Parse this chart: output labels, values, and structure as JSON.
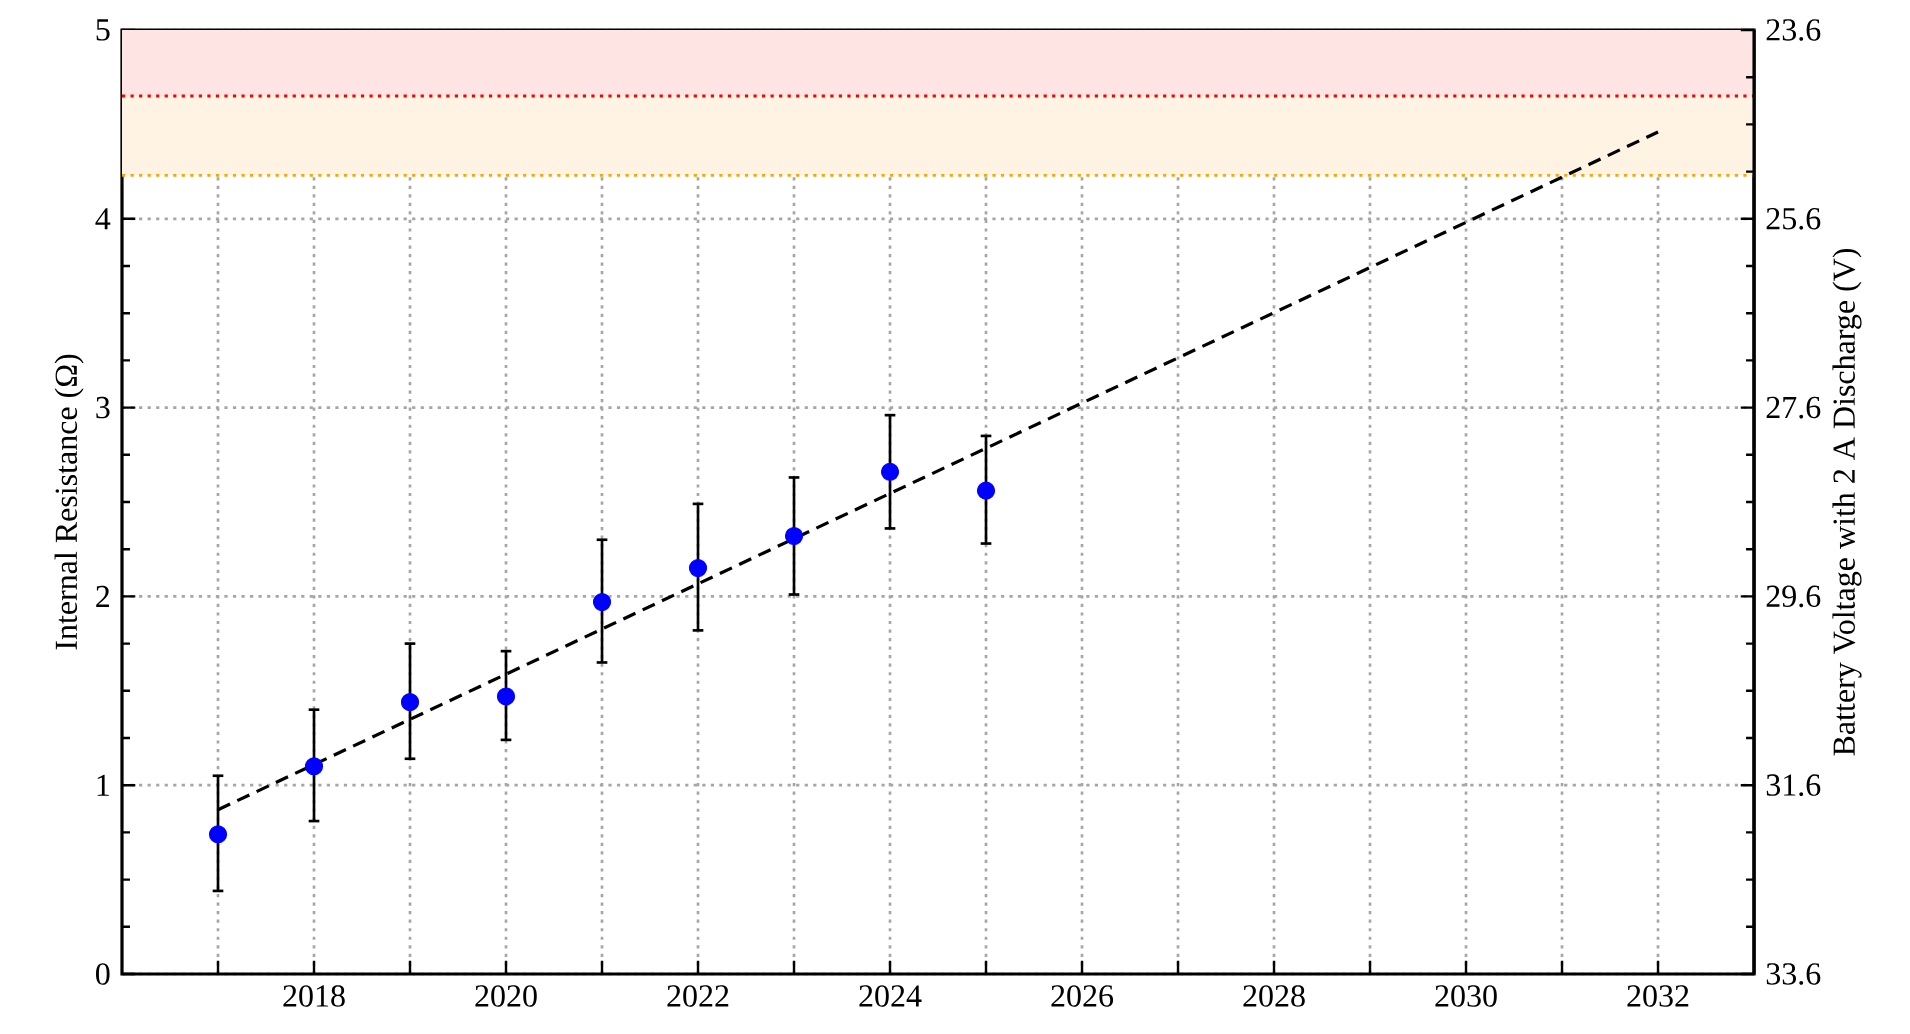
{
  "chart_data": {
    "type": "scatter",
    "ylabel": "Internal Resistance (Ω)",
    "y2label": "Battery Voltage with 2 A Discharge (V)",
    "xlim": [
      2016,
      2033
    ],
    "xticks": [
      {
        "value": 2017,
        "label": null
      },
      2018,
      {
        "value": 2019,
        "label": null
      },
      2020,
      {
        "value": 2021,
        "label": null
      },
      2022,
      {
        "value": 2023,
        "label": null
      },
      2024,
      {
        "value": 2025,
        "label": null
      },
      2026,
      {
        "value": 2027,
        "label": null
      },
      2028,
      {
        "value": 2029,
        "label": null
      },
      2030,
      {
        "value": 2031,
        "label": null
      },
      2032
    ],
    "ylim": [
      0,
      5
    ],
    "yticks": [
      0,
      1,
      2,
      3,
      4,
      5
    ],
    "y2lim": [
      33.6,
      23.6
    ],
    "y2ticks": [
      33.6,
      31.6,
      29.6,
      27.6,
      25.6,
      23.6
    ],
    "grid": true,
    "marker": "circle",
    "series": [
      {
        "color": "#0000ff",
        "x": [
          2017,
          2018,
          2019,
          2020,
          2021,
          2022,
          2023,
          2024,
          2025
        ],
        "values": [
          0.74,
          1.1,
          1.44,
          1.47,
          1.97,
          2.15,
          2.32,
          2.66,
          2.56
        ],
        "errors": [
          [
            0.44,
            1.05
          ],
          [
            0.81,
            1.4
          ],
          [
            1.14,
            1.75
          ],
          [
            1.24,
            1.71
          ],
          [
            1.65,
            2.3
          ],
          [
            1.82,
            2.49
          ],
          [
            2.01,
            2.63
          ],
          [
            2.36,
            2.96
          ],
          [
            2.28,
            2.85
          ]
        ]
      },
      {
        "type": "line",
        "color": "#000000",
        "line_style": "dashed",
        "marker": "none",
        "x": [
          2017,
          2032
        ],
        "values": [
          0.87,
          4.46
        ]
      }
    ],
    "bands": [
      {
        "axis": "y",
        "from": 4.65,
        "to": 5,
        "color": "#ffe4e4"
      },
      {
        "axis": "y",
        "from": 4.23,
        "to": 4.65,
        "color": "#fff4e4"
      }
    ],
    "ref_lines": [
      {
        "axis": "y",
        "value": 4.65,
        "color": "#ff0000",
        "line_style": "dotted"
      },
      {
        "axis": "y",
        "value": 4.23,
        "color": "#ffa500",
        "line_style": "dotted"
      }
    ]
  }
}
